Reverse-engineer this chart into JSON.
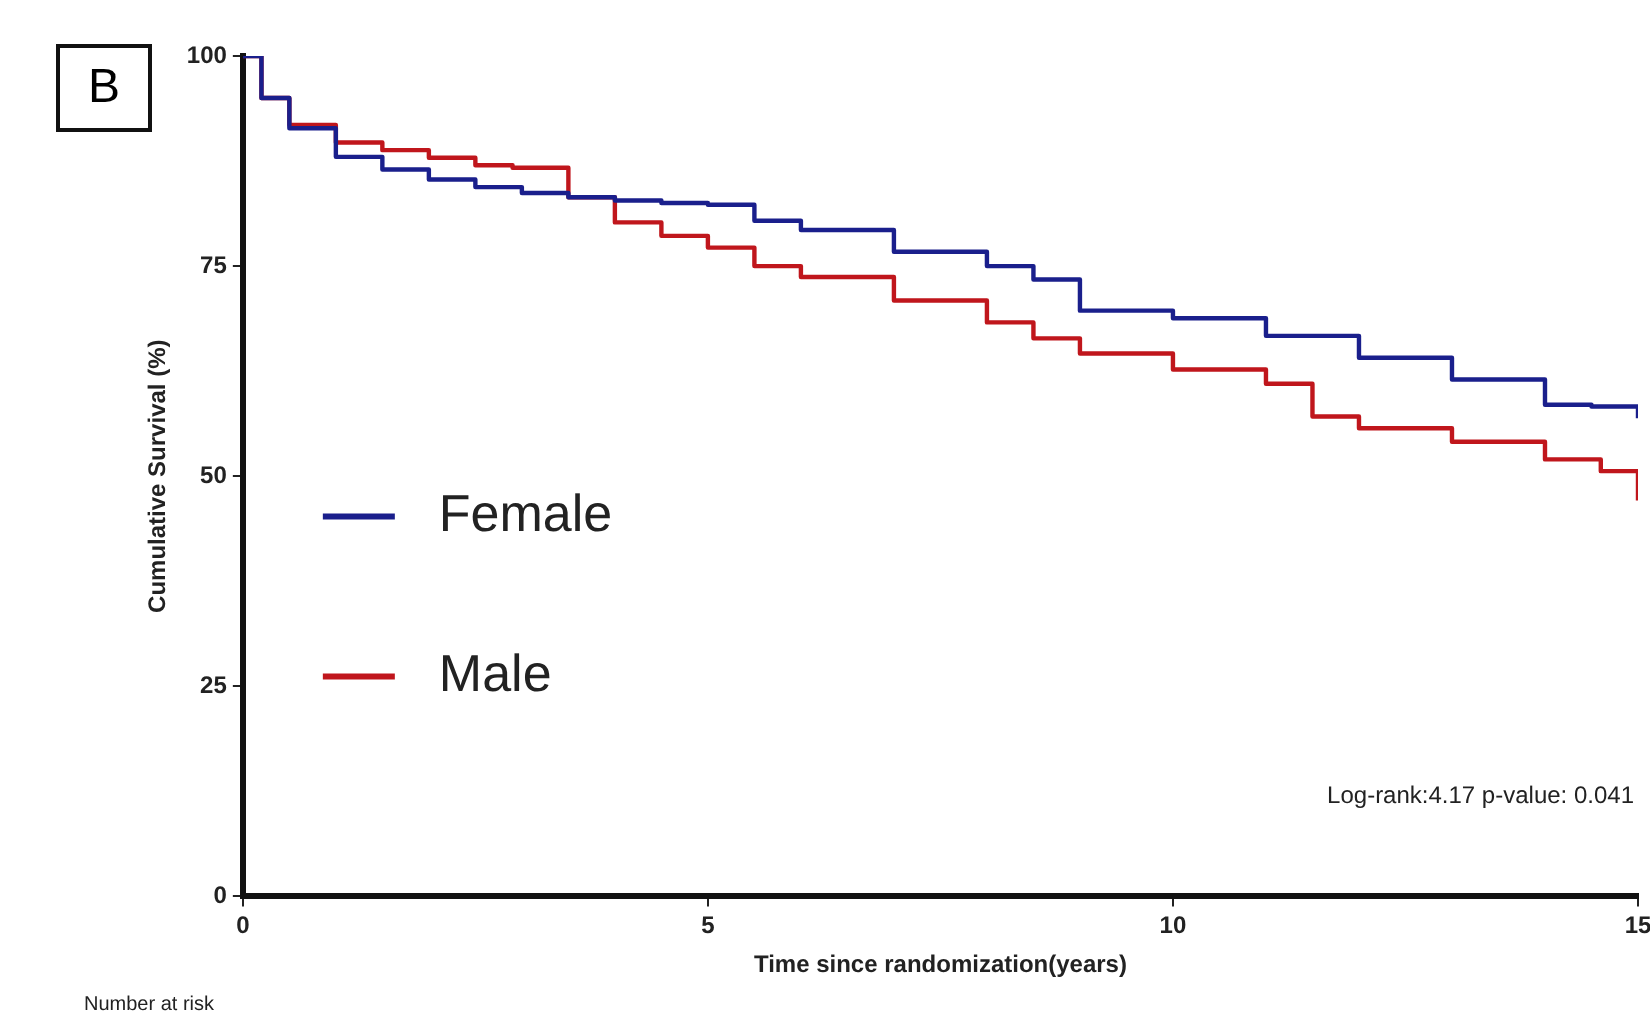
{
  "chart_data": {
    "type": "step",
    "xlabel": "Time since randomization(years)",
    "ylabel": "Cumulative Survival (%)",
    "xlim": [
      0,
      15
    ],
    "xticks": [
      0,
      5,
      10,
      15
    ],
    "ylim": [
      0,
      100
    ],
    "yticks": [
      0,
      25,
      50,
      75,
      100
    ],
    "grid": false,
    "legend": "bottom left",
    "marker": "none",
    "line_style": "solid",
    "annotations": [
      "B",
      "Log-rank:4.17 p-value: 0.041",
      "Number at risk"
    ],
    "series": [
      {
        "name": "Female",
        "color": "#1a1f8c",
        "x": [
          0,
          0.2,
          0.5,
          1,
          1.5,
          2,
          2.5,
          3,
          3.5,
          4,
          4.5,
          5,
          5.5,
          6,
          7,
          8,
          8.5,
          9,
          10,
          11,
          12,
          13,
          14,
          14.5,
          15
        ],
        "values": [
          100,
          95,
          91.4,
          88,
          86.5,
          85.3,
          84.4,
          83.7,
          83.2,
          82.8,
          82.5,
          82.3,
          80.4,
          79.3,
          76.7,
          75,
          73.4,
          69.7,
          68.8,
          66.7,
          64.1,
          61.5,
          58.5,
          58.3,
          56.9
        ]
      },
      {
        "name": "Male",
        "color": "#c0161c",
        "x": [
          0,
          0.2,
          0.5,
          1,
          1.5,
          2,
          2.5,
          2.9,
          3.5,
          4,
          4.5,
          5,
          5.5,
          6,
          7,
          8,
          8.5,
          9,
          10,
          11,
          11.5,
          12,
          13,
          14,
          14.6,
          15
        ],
        "values": [
          100,
          95,
          91.8,
          89.7,
          88.8,
          87.9,
          87,
          86.7,
          83.2,
          80.2,
          78.6,
          77.2,
          75,
          73.7,
          70.9,
          68.3,
          66.4,
          64.6,
          62.7,
          61,
          57.1,
          55.7,
          54.1,
          52,
          50.6,
          47.1
        ]
      }
    ]
  }
}
